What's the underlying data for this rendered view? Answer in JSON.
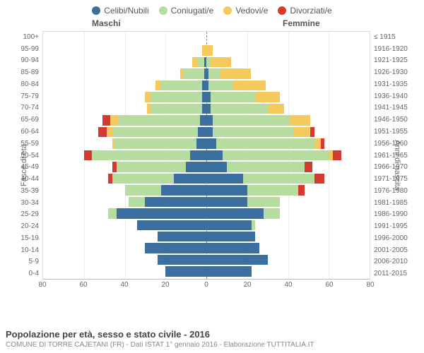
{
  "legend": [
    {
      "label": "Celibi/Nubili",
      "color": "#3b6fa0"
    },
    {
      "label": "Coniugati/e",
      "color": "#b7dca0"
    },
    {
      "label": "Vedovi/e",
      "color": "#f6c95e"
    },
    {
      "label": "Divorziati/e",
      "color": "#d43a2f"
    }
  ],
  "headers": {
    "male": "Maschi",
    "female": "Femmine"
  },
  "axis": {
    "left_title": "Fasce di età",
    "right_title": "Anni di nascita",
    "x_max": 80,
    "x_ticks": [
      80,
      60,
      40,
      20,
      0,
      20,
      40,
      60,
      80
    ]
  },
  "colors": {
    "grid": "#eeeeee",
    "border": "#dddddd",
    "center": "#888888",
    "bg": "#ffffff"
  },
  "footer": {
    "title": "Popolazione per età, sesso e stato civile - 2016",
    "subtitle": "COMUNE DI TORRE CAJETANI (FR) - Dati ISTAT 1° gennaio 2016 - Elaborazione TUTTITALIA.IT"
  },
  "rows": [
    {
      "age": "100+",
      "birth": "≤ 1915",
      "m": [
        0,
        0,
        0,
        0
      ],
      "f": [
        0,
        0,
        0,
        0
      ]
    },
    {
      "age": "95-99",
      "birth": "1916-1920",
      "m": [
        0,
        0,
        2,
        0
      ],
      "f": [
        0,
        0,
        3,
        0
      ]
    },
    {
      "age": "90-94",
      "birth": "1921-1925",
      "m": [
        1,
        3,
        3,
        0
      ],
      "f": [
        0,
        2,
        10,
        0
      ]
    },
    {
      "age": "85-89",
      "birth": "1926-1930",
      "m": [
        1,
        10,
        2,
        0
      ],
      "f": [
        1,
        6,
        15,
        0
      ]
    },
    {
      "age": "80-84",
      "birth": "1931-1935",
      "m": [
        2,
        20,
        3,
        0
      ],
      "f": [
        1,
        12,
        16,
        0
      ]
    },
    {
      "age": "75-79",
      "birth": "1936-1940",
      "m": [
        2,
        25,
        3,
        0
      ],
      "f": [
        2,
        22,
        12,
        0
      ]
    },
    {
      "age": "70-74",
      "birth": "1941-1945",
      "m": [
        2,
        25,
        2,
        0
      ],
      "f": [
        2,
        28,
        8,
        0
      ]
    },
    {
      "age": "65-69",
      "birth": "1946-1950",
      "m": [
        3,
        40,
        4,
        4
      ],
      "f": [
        3,
        38,
        10,
        0
      ]
    },
    {
      "age": "60-64",
      "birth": "1951-1955",
      "m": [
        4,
        42,
        3,
        4
      ],
      "f": [
        3,
        40,
        8,
        2
      ]
    },
    {
      "age": "55-59",
      "birth": "1956-1960",
      "m": [
        5,
        40,
        1,
        0
      ],
      "f": [
        5,
        48,
        3,
        2
      ]
    },
    {
      "age": "50-54",
      "birth": "1961-1965",
      "m": [
        8,
        48,
        0,
        4
      ],
      "f": [
        8,
        52,
        2,
        4
      ]
    },
    {
      "age": "45-49",
      "birth": "1966-1970",
      "m": [
        10,
        34,
        0,
        2
      ],
      "f": [
        10,
        38,
        0,
        4
      ]
    },
    {
      "age": "40-44",
      "birth": "1971-1975",
      "m": [
        16,
        30,
        0,
        2
      ],
      "f": [
        18,
        35,
        0,
        5
      ]
    },
    {
      "age": "35-39",
      "birth": "1976-1980",
      "m": [
        22,
        18,
        0,
        0
      ],
      "f": [
        20,
        25,
        0,
        3
      ]
    },
    {
      "age": "30-34",
      "birth": "1981-1985",
      "m": [
        30,
        8,
        0,
        0
      ],
      "f": [
        20,
        16,
        0,
        0
      ]
    },
    {
      "age": "25-29",
      "birth": "1986-1990",
      "m": [
        44,
        4,
        0,
        0
      ],
      "f": [
        28,
        8,
        0,
        0
      ]
    },
    {
      "age": "20-24",
      "birth": "1991-1995",
      "m": [
        34,
        0,
        0,
        0
      ],
      "f": [
        22,
        2,
        0,
        0
      ]
    },
    {
      "age": "15-19",
      "birth": "1996-2000",
      "m": [
        24,
        0,
        0,
        0
      ],
      "f": [
        24,
        0,
        0,
        0
      ]
    },
    {
      "age": "10-14",
      "birth": "2001-2005",
      "m": [
        30,
        0,
        0,
        0
      ],
      "f": [
        26,
        0,
        0,
        0
      ]
    },
    {
      "age": "5-9",
      "birth": "2006-2010",
      "m": [
        24,
        0,
        0,
        0
      ],
      "f": [
        30,
        0,
        0,
        0
      ]
    },
    {
      "age": "0-4",
      "birth": "2011-2015",
      "m": [
        20,
        0,
        0,
        0
      ],
      "f": [
        22,
        0,
        0,
        0
      ]
    }
  ]
}
